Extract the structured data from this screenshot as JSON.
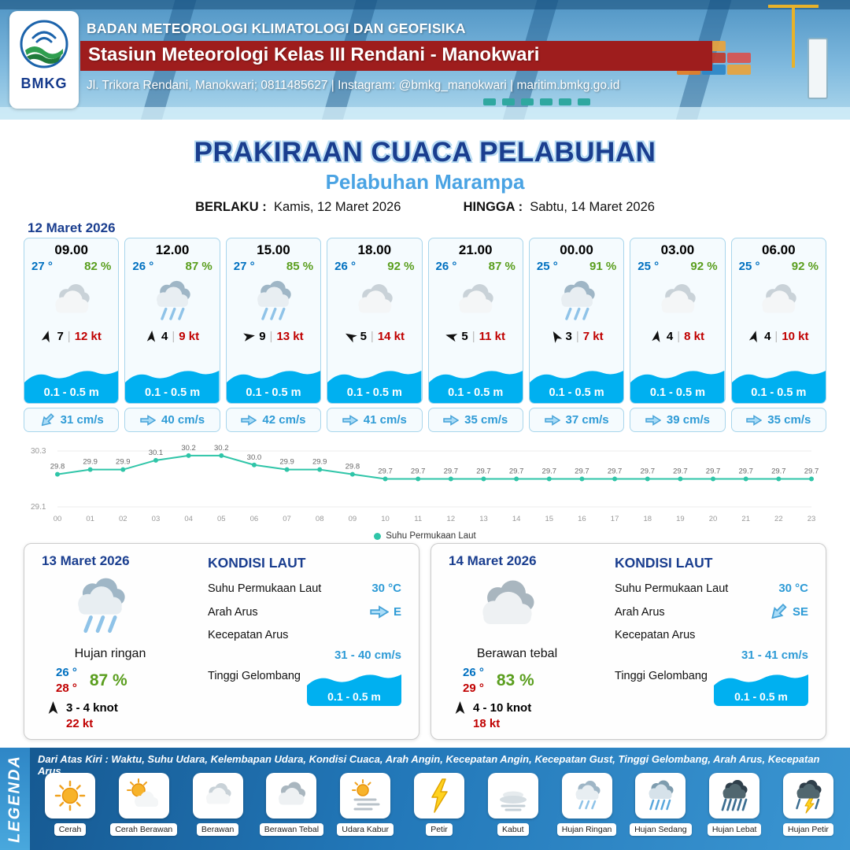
{
  "header": {
    "logo_text": "BMKG",
    "agency": "BADAN METEOROLOGI KLIMATOLOGI DAN GEOFISIKA",
    "station": "Stasiun Meteorologi Kelas III Rendani - Manokwari",
    "address": "Jl. Trikora Rendani, Manokwari; 0811485627 | Instagram: @bmkg_manokwari | maritim.bmkg.go.id"
  },
  "title": {
    "main": "PRAKIRAAN CUACA PELABUHAN",
    "subtitle": "Pelabuhan Marampa",
    "berlaku_label": "BERLAKU :",
    "berlaku_value": "Kamis, 12 Maret 2026",
    "hingga_label": "HINGGA :",
    "hingga_value": "Sabtu, 14 Maret 2026"
  },
  "forecast": {
    "date": "12 Maret 2026",
    "cards": [
      {
        "time": "09.00",
        "temp": "27 °",
        "humidity": "82 %",
        "icon": "berawan",
        "wind_deg": 15,
        "wind_num": "7",
        "wind_kt": "12 kt",
        "wave": "0.1 - 0.5 m",
        "current": "31 cm/s",
        "current_deg": 135
      },
      {
        "time": "12.00",
        "temp": "26 °",
        "humidity": "87 %",
        "icon": "hujan-ringan",
        "wind_deg": 5,
        "wind_num": "4",
        "wind_kt": "9 kt",
        "wave": "0.1 - 0.5 m",
        "current": "40 cm/s",
        "current_deg": 0
      },
      {
        "time": "15.00",
        "temp": "27 °",
        "humidity": "85 %",
        "icon": "hujan-ringan",
        "wind_deg": 80,
        "wind_num": "9",
        "wind_kt": "13 kt",
        "wave": "0.1 - 0.5 m",
        "current": "42 cm/s",
        "current_deg": 0
      },
      {
        "time": "18.00",
        "temp": "26 °",
        "humidity": "92 %",
        "icon": "berawan",
        "wind_deg": 300,
        "wind_num": "5",
        "wind_kt": "14 kt",
        "wave": "0.1 - 0.5 m",
        "current": "41 cm/s",
        "current_deg": 0
      },
      {
        "time": "21.00",
        "temp": "26 °",
        "humidity": "87 %",
        "icon": "berawan",
        "wind_deg": 285,
        "wind_num": "5",
        "wind_kt": "11 kt",
        "wave": "0.1 - 0.5 m",
        "current": "35 cm/s",
        "current_deg": 0
      },
      {
        "time": "00.00",
        "temp": "25 °",
        "humidity": "91 %",
        "icon": "hujan-ringan",
        "wind_deg": 330,
        "wind_num": "3",
        "wind_kt": "7 kt",
        "wave": "0.1 - 0.5 m",
        "current": "37 cm/s",
        "current_deg": 0
      },
      {
        "time": "03.00",
        "temp": "25 °",
        "humidity": "92 %",
        "icon": "berawan",
        "wind_deg": 10,
        "wind_num": "4",
        "wind_kt": "8 kt",
        "wave": "0.1 - 0.5 m",
        "current": "39 cm/s",
        "current_deg": 0
      },
      {
        "time": "06.00",
        "temp": "25 °",
        "humidity": "92 %",
        "icon": "berawan",
        "wind_deg": 15,
        "wind_num": "4",
        "wind_kt": "10 kt",
        "wave": "0.1 - 0.5 m",
        "current": "35 cm/s",
        "current_deg": 0
      }
    ]
  },
  "chart_data": {
    "type": "line",
    "series_label": "Suhu Permukaan Laut",
    "x": [
      "00",
      "01",
      "02",
      "03",
      "04",
      "05",
      "06",
      "07",
      "08",
      "09",
      "10",
      "11",
      "12",
      "13",
      "14",
      "15",
      "16",
      "17",
      "18",
      "19",
      "20",
      "21",
      "22",
      "23"
    ],
    "values": [
      29.8,
      29.9,
      29.9,
      30.1,
      30.2,
      30.2,
      30.0,
      29.9,
      29.9,
      29.8,
      29.7,
      29.7,
      29.7,
      29.7,
      29.7,
      29.7,
      29.7,
      29.7,
      29.7,
      29.7,
      29.7,
      29.7,
      29.7,
      29.7
    ],
    "ylim": [
      29.1,
      30.3
    ],
    "line_color": "#2fc5a8",
    "legend_position": "bottom"
  },
  "daily": [
    {
      "date": "13 Maret 2026",
      "icon": "hujan-ringan",
      "condition": "Hujan ringan",
      "temp_min": "26 °",
      "temp_max": "28 °",
      "humidity": "87 %",
      "wind_range": "3  - 4  knot",
      "gust": "22 kt",
      "sea": {
        "title": "KONDISI LAUT",
        "sst_label": "Suhu Permukaan Laut",
        "sst": "30 °C",
        "arah_label": "Arah Arus",
        "arah": "E",
        "arah_deg": 0,
        "kecepatan_label": "Kecepatan Arus",
        "kecepatan": "31  - 40 cm/s",
        "gelombang_label": "Tinggi Gelombang",
        "gelombang": "0.1 - 0.5 m"
      }
    },
    {
      "date": "14 Maret 2026",
      "icon": "berawan-tebal",
      "condition": "Berawan tebal",
      "temp_min": "26 °",
      "temp_max": "29 °",
      "humidity": "83 %",
      "wind_range": "4  - 10 knot",
      "gust": "18 kt",
      "sea": {
        "title": "KONDISI LAUT",
        "sst_label": "Suhu Permukaan Laut",
        "sst": "30 °C",
        "arah_label": "Arah Arus",
        "arah": "SE",
        "arah_deg": 135,
        "kecepatan_label": "Kecepatan Arus",
        "kecepatan": "31  - 41 cm/s",
        "gelombang_label": "Tinggi Gelombang",
        "gelombang": "0.1 - 0.5 m"
      }
    }
  ],
  "legend": {
    "title": "LEGENDA",
    "description": "Dari Atas Kiri : Waktu, Suhu Udara, Kelembapan Udara, Kondisi Cuaca, Arah Angin, Kecepatan Angin, Kecepatan Gust, Tinggi Gelombang, Arah Arus, Kecepatan Arus",
    "items": [
      {
        "label": "Cerah",
        "icon": "cerah"
      },
      {
        "label": "Cerah Berawan",
        "icon": "cerah-berawan"
      },
      {
        "label": "Berawan",
        "icon": "berawan"
      },
      {
        "label": "Berawan Tebal",
        "icon": "berawan-tebal"
      },
      {
        "label": "Udara Kabur",
        "icon": "udara-kabur"
      },
      {
        "label": "Petir",
        "icon": "petir"
      },
      {
        "label": "Kabut",
        "icon": "kabut"
      },
      {
        "label": "Hujan Ringan",
        "icon": "hujan-ringan"
      },
      {
        "label": "Hujan Sedang",
        "icon": "hujan-sedang"
      },
      {
        "label": "Hujan Lebat",
        "icon": "hujan-lebat"
      },
      {
        "label": "Hujan Petir",
        "icon": "hujan-petir"
      }
    ]
  }
}
